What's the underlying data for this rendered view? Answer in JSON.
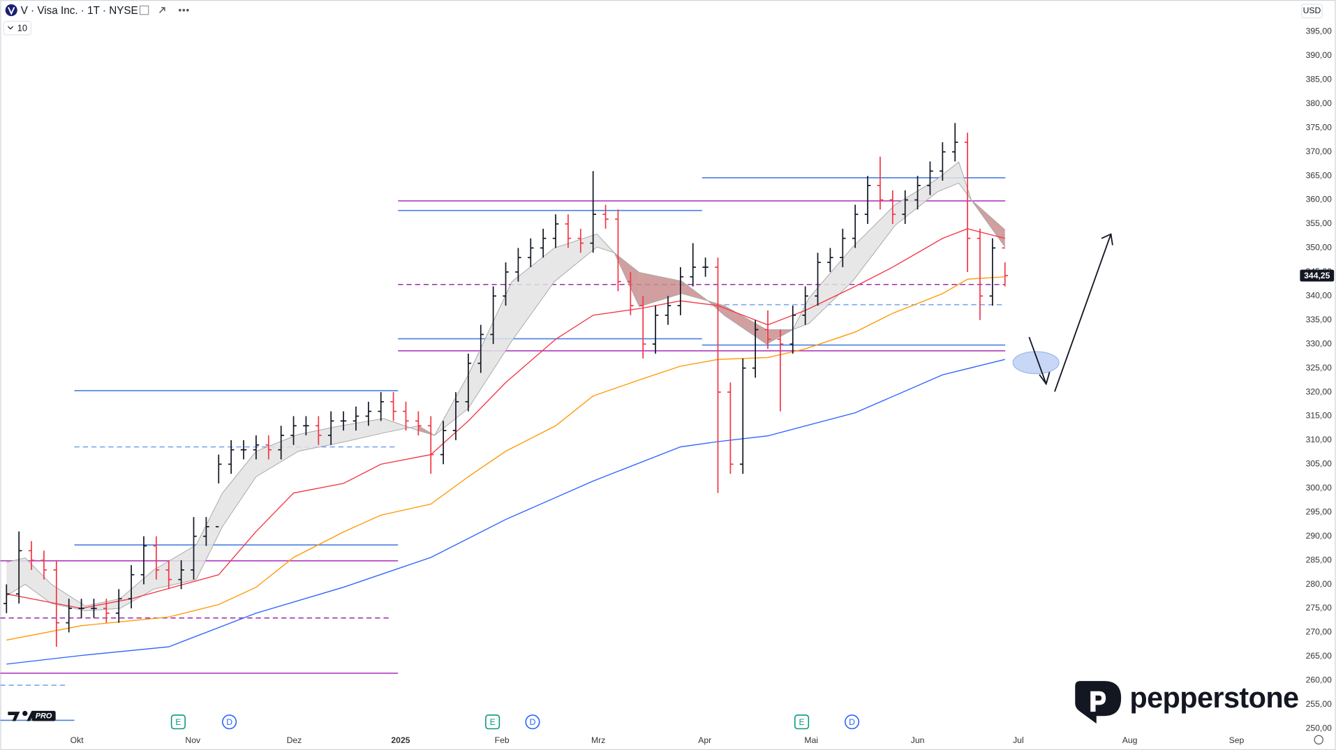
{
  "header": {
    "title": "V · Visa Inc. · 1T · NYSE",
    "indicator_count": "10",
    "currency": "USD"
  },
  "branding": {
    "platform": "PRO",
    "broker": "pepperstone"
  },
  "chart_data": {
    "type": "ohlc",
    "grid": false,
    "xlim": [
      -0.5,
      103.5
    ],
    "xticks": [
      {
        "value": 5.64,
        "label": "Okt"
      },
      {
        "value": 14.93,
        "label": "Nov"
      },
      {
        "value": 23.05,
        "label": "Dez"
      },
      {
        "value": 31.58,
        "label": "2025"
      },
      {
        "value": 39.7,
        "label": "Feb"
      },
      {
        "value": 47.42,
        "label": "Mrz"
      },
      {
        "value": 55.95,
        "label": "Apr"
      },
      {
        "value": 64.48,
        "label": "Mai"
      },
      {
        "value": 73.0,
        "label": "Jun"
      },
      {
        "value": 81.07,
        "label": "Jul"
      },
      {
        "value": 90.0,
        "label": "Aug"
      },
      {
        "value": 98.55,
        "label": "Sep"
      }
    ],
    "ylim": [
      249.6,
      401.6
    ],
    "yticks": [
      {
        "value": 250,
        "label": "250,00"
      },
      {
        "value": 255,
        "label": "255,00"
      },
      {
        "value": 260,
        "label": "260,00"
      },
      {
        "value": 265,
        "label": "265,00"
      },
      {
        "value": 270,
        "label": "270,00"
      },
      {
        "value": 275,
        "label": "275,00"
      },
      {
        "value": 280,
        "label": "280,00"
      },
      {
        "value": 285,
        "label": "285,00"
      },
      {
        "value": 290,
        "label": "290,00"
      },
      {
        "value": 295,
        "label": "295,00"
      },
      {
        "value": 300,
        "label": "300,00"
      },
      {
        "value": 305,
        "label": "305,00"
      },
      {
        "value": 310,
        "label": "310,00"
      },
      {
        "value": 315,
        "label": "315,00"
      },
      {
        "value": 320,
        "label": "320,00"
      },
      {
        "value": 325,
        "label": "325,00"
      },
      {
        "value": 330,
        "label": "330,00"
      },
      {
        "value": 335,
        "label": "335,00"
      },
      {
        "value": 340,
        "label": "340,00"
      },
      {
        "value": 345,
        "label": "345,00"
      },
      {
        "value": 350,
        "label": "350,00"
      },
      {
        "value": 355,
        "label": "355,00"
      },
      {
        "value": 360,
        "label": "360,00"
      },
      {
        "value": 365,
        "label": "365,00"
      },
      {
        "value": 370,
        "label": "370,00"
      },
      {
        "value": 375,
        "label": "375,00"
      },
      {
        "value": 380,
        "label": "380,00"
      },
      {
        "value": 385,
        "label": "385,00"
      },
      {
        "value": 390,
        "label": "390,00"
      },
      {
        "value": 395,
        "label": "395,00"
      }
    ],
    "ohlc": {
      "up_color": "#131722",
      "down_color": "#f23645",
      "open": [
        276,
        278,
        287,
        285,
        283,
        272,
        275,
        275,
        275,
        274,
        277,
        282,
        288,
        283,
        281,
        283,
        290,
        292,
        305,
        308,
        308,
        309,
        308,
        311,
        313,
        313,
        311,
        314,
        314,
        315,
        316,
        318,
        316,
        314,
        313,
        307,
        312,
        318,
        326,
        332,
        340,
        345,
        348,
        350,
        352,
        355,
        352,
        351,
        357,
        356,
        343,
        338,
        330,
        336,
        338,
        344,
        346,
        346,
        320,
        305,
        325,
        333,
        331,
        330,
        336,
        340,
        347,
        348,
        352,
        357,
        363,
        360,
        357,
        360,
        363,
        366,
        370,
        372,
        352,
        340,
        350
      ],
      "high": [
        280,
        291,
        289,
        287,
        285,
        277,
        277,
        277,
        277,
        279,
        284,
        290,
        290,
        285,
        285,
        294,
        294,
        307,
        310,
        310,
        311,
        311,
        313,
        315,
        315,
        315,
        316,
        316,
        317,
        318,
        320,
        320,
        318,
        316,
        315,
        314,
        320,
        328,
        334,
        342,
        347,
        350,
        352,
        354,
        357,
        357,
        354,
        366,
        359,
        358,
        345,
        340,
        338,
        340,
        346,
        351,
        348,
        348,
        322,
        327,
        335,
        337,
        333,
        338,
        342,
        349,
        350,
        354,
        359,
        365,
        369,
        362,
        362,
        365,
        368,
        372,
        376,
        374,
        354,
        352,
        347
      ],
      "low": [
        274,
        276,
        283,
        281,
        267,
        270,
        273,
        273,
        272,
        272,
        275,
        280,
        281,
        279,
        279,
        281,
        288,
        301,
        303,
        306,
        306,
        306,
        306,
        309,
        311,
        309,
        309,
        312,
        312,
        313,
        314,
        314,
        312,
        311,
        303,
        305,
        310,
        316,
        324,
        330,
        338,
        343,
        346,
        348,
        350,
        350,
        349,
        349,
        354,
        341,
        336,
        327,
        328,
        334,
        336,
        342,
        344,
        299,
        303,
        303,
        323,
        329,
        316,
        328,
        334,
        338,
        345,
        346,
        350,
        355,
        358,
        355,
        355,
        358,
        361,
        364,
        368,
        345,
        335,
        338,
        342
      ],
      "close": [
        278,
        287,
        285,
        283,
        272,
        275,
        275,
        275,
        274,
        277,
        282,
        288,
        283,
        281,
        283,
        290,
        292,
        305,
        308,
        308,
        309,
        308,
        311,
        313,
        313,
        311,
        314,
        314,
        315,
        316,
        318,
        316,
        314,
        313,
        307,
        312,
        318,
        326,
        332,
        340,
        345,
        348,
        350,
        352,
        355,
        352,
        351,
        357,
        356,
        343,
        338,
        330,
        336,
        338,
        344,
        346,
        346,
        320,
        305,
        325,
        333,
        331,
        330,
        336,
        340,
        347,
        348,
        352,
        357,
        363,
        360,
        357,
        360,
        363,
        366,
        370,
        372,
        352,
        340,
        350,
        344.25
      ]
    },
    "lines": [
      {
        "color": "#f23645",
        "x": [
          0,
          6,
          10,
          17,
          20,
          23,
          27,
          30,
          34,
          37,
          40,
          44,
          47,
          51,
          54,
          57,
          61,
          64,
          68,
          71,
          75,
          77,
          80
        ],
        "values": [
          278,
          275,
          277,
          282,
          291,
          299,
          301,
          305,
          307,
          314,
          322,
          331,
          336,
          337.5,
          339,
          338,
          334,
          337,
          342,
          346,
          352,
          354,
          352
        ]
      },
      {
        "color": "#ff9800",
        "x": [
          0,
          6,
          13,
          17,
          20,
          23,
          27,
          30,
          34,
          37,
          40,
          44,
          47,
          51,
          54,
          57,
          61,
          64,
          68,
          71,
          75,
          77,
          80
        ],
        "values": [
          268.4,
          271.4,
          273.2,
          275.8,
          279.4,
          285.6,
          290.9,
          294.4,
          296.7,
          302.4,
          307.7,
          313,
          319.2,
          322.8,
          325.4,
          326.8,
          327.2,
          329,
          332.5,
          336.4,
          340.5,
          343.5,
          344
        ]
      },
      {
        "color": "#2962ff",
        "x": [
          0,
          6,
          13,
          20,
          27,
          34,
          40,
          47,
          54,
          57,
          61,
          68,
          75,
          80
        ],
        "values": [
          263.4,
          265.2,
          267,
          274,
          279.4,
          285.6,
          293.5,
          301.5,
          308.6,
          309.7,
          310.9,
          315.7,
          323.6,
          326.8
        ]
      }
    ],
    "ribbon": {
      "up_color": "#e3e3e3",
      "down_color": "#c98e8e",
      "line_color": "#a8a8a8",
      "x": [
        0,
        1.5,
        3.6,
        6.3,
        9.1,
        11.8,
        15.2,
        17.3,
        20,
        23.4,
        26.8,
        30.2,
        33,
        34.3,
        37,
        40.5,
        43.9,
        47.3,
        48.7,
        50.7,
        54.1,
        56.2,
        57.5,
        60.9,
        63,
        64.3,
        67.8,
        71.2,
        74.6,
        76.3,
        77.3,
        80
      ],
      "fast": [
        284.6,
        285.5,
        280,
        275.5,
        277,
        283,
        288.2,
        299,
        307.7,
        311.2,
        313,
        314.5,
        312,
        311,
        323.6,
        343,
        350,
        352.9,
        349,
        337.8,
        340.5,
        339,
        336,
        330,
        333,
        339.6,
        350.2,
        359,
        364.4,
        367.9,
        360,
        350.2
      ],
      "slow": [
        277.6,
        280,
        276,
        274.5,
        275,
        279,
        281,
        292,
        302.4,
        307.7,
        309.5,
        311.5,
        313,
        311,
        316.6,
        330.7,
        343,
        350.2,
        349,
        344.9,
        343.1,
        339,
        338,
        333,
        333,
        334.3,
        343.1,
        354.7,
        361.7,
        363.5,
        360,
        353.8
      ]
    },
    "levels": [
      {
        "value": 320.3,
        "color": "#4a7fe0",
        "dashed": false
      },
      {
        "value": 308.6,
        "color": "#7aa6f0",
        "dashed": true
      },
      {
        "value": 288.2,
        "color": "#4a7fe0",
        "dashed": false
      },
      {
        "value": 284.9,
        "color": "#b03cc0",
        "dashed": false
      },
      {
        "value": 273.0,
        "color": "#9c27b0",
        "dashed": true
      },
      {
        "value": 261.5,
        "color": "#b03cc0",
        "dashed": false
      },
      {
        "value": 259.0,
        "color": "#7aa6f0",
        "dashed": true
      },
      {
        "value": 251.7,
        "color": "#4a7fe0",
        "dashed": false
      },
      {
        "value": 359.8,
        "color": "#b03cc0",
        "dashed": false
      },
      {
        "value": 357.8,
        "color": "#4a7fe0",
        "dashed": false
      },
      {
        "value": 364.6,
        "color": "#4a7fe0",
        "dashed": false
      },
      {
        "value": 342.4,
        "color": "#9c27b0",
        "dashed": true
      },
      {
        "value": 338.2,
        "color": "#7aa6f0",
        "dashed": true
      },
      {
        "value": 331.1,
        "color": "#4a7fe0",
        "dashed": false
      },
      {
        "value": 329.8,
        "color": "#4a7fe0",
        "dashed": false
      },
      {
        "value": 328.6,
        "color": "#b03cc0",
        "dashed": false
      }
    ],
    "last_price": {
      "value": 344.25,
      "label": "344,25"
    },
    "events": [
      "E",
      "D",
      "E",
      "D",
      "E",
      "D"
    ]
  }
}
